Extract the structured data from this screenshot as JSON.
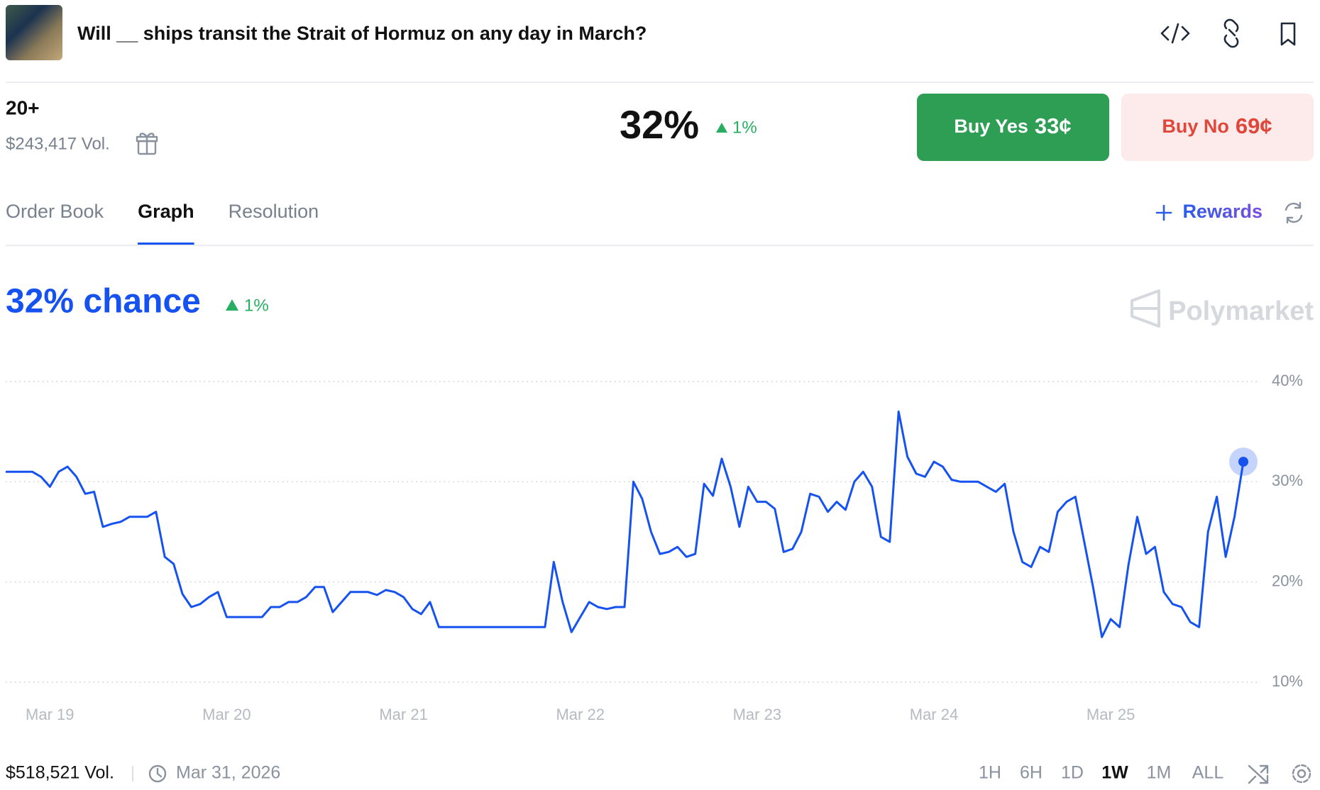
{
  "header": {
    "title": "Will __ ships transit the Strait of Hormuz on any day in March?"
  },
  "market": {
    "outcome": "20+",
    "volume": "$243,417 Vol.",
    "probability": "32%",
    "change": "1%",
    "buy_yes": {
      "label": "Buy Yes",
      "price": "33¢"
    },
    "buy_no": {
      "label": "Buy No",
      "price": "69¢"
    }
  },
  "tabs": {
    "items": [
      "Order Book",
      "Graph",
      "Resolution"
    ],
    "selected": 1,
    "rewards": "Rewards"
  },
  "chart_data": {
    "type": "line",
    "title": "32% chance",
    "change": "1%",
    "watermark": "Polymarket",
    "categories": [
      null,
      null,
      null,
      null,
      null,
      "Mar 19",
      null,
      null,
      null,
      null,
      null,
      null,
      null,
      null,
      null,
      null,
      null,
      null,
      null,
      null,
      null,
      null,
      null,
      null,
      null,
      "Mar 20",
      null,
      null,
      null,
      null,
      null,
      null,
      null,
      null,
      null,
      null,
      null,
      null,
      null,
      null,
      null,
      null,
      null,
      null,
      null,
      "Mar 21",
      null,
      null,
      null,
      null,
      null,
      null,
      null,
      null,
      null,
      null,
      null,
      null,
      null,
      null,
      null,
      null,
      null,
      null,
      null,
      "Mar 22",
      null,
      null,
      null,
      null,
      null,
      null,
      null,
      null,
      null,
      null,
      null,
      null,
      null,
      null,
      null,
      null,
      null,
      null,
      null,
      "Mar 23",
      null,
      null,
      null,
      null,
      null,
      null,
      null,
      null,
      null,
      null,
      null,
      null,
      null,
      null,
      null,
      null,
      null,
      null,
      null,
      "Mar 24",
      null,
      null,
      null,
      null,
      null,
      null,
      null,
      null,
      null,
      null,
      null,
      null,
      null,
      null,
      null,
      null,
      null,
      null,
      null,
      "Mar 25",
      null,
      null,
      null,
      null,
      null,
      null,
      null,
      null,
      null,
      null,
      null,
      null,
      null,
      null,
      null
    ],
    "values": [
      31,
      31,
      31,
      31,
      30.5,
      29.5,
      31,
      31.5,
      30.5,
      28.8,
      29,
      25.5,
      25.8,
      26,
      26.5,
      26.5,
      26.5,
      27,
      22.5,
      21.8,
      18.8,
      17.5,
      17.8,
      18.5,
      19,
      16.5,
      16.5,
      16.5,
      16.5,
      16.5,
      17.5,
      17.5,
      18,
      18,
      18.5,
      19.5,
      19.5,
      17,
      18,
      19,
      19,
      19,
      18.7,
      19.2,
      19,
      18.5,
      17.3,
      16.8,
      18,
      15.5,
      15.5,
      15.5,
      15.5,
      15.5,
      15.5,
      15.5,
      15.5,
      15.5,
      15.5,
      15.5,
      15.5,
      15.5,
      22,
      18,
      15,
      16.5,
      18,
      17.5,
      17.3,
      17.5,
      17.5,
      30,
      28.3,
      25,
      22.8,
      23,
      23.5,
      22.5,
      22.8,
      29.8,
      28.6,
      32.3,
      29.5,
      25.5,
      29.5,
      28,
      28,
      27.3,
      23,
      23.3,
      25,
      28.8,
      28.5,
      27,
      28,
      27.2,
      30,
      31,
      29.5,
      24.5,
      24,
      37,
      32.5,
      30.8,
      30.5,
      32,
      31.5,
      30.2,
      30,
      30,
      30,
      29.5,
      29,
      29.8,
      25,
      22,
      21.5,
      23.5,
      23,
      27,
      28,
      28.5,
      24,
      19.5,
      14.5,
      16.3,
      15.5,
      21.7,
      26.5,
      22.8,
      23.5,
      19,
      17.8,
      17.5,
      16,
      15.5,
      25,
      28.5,
      22.5,
      26.5,
      32
    ],
    "color": "#1652f0",
    "ylim": [
      10,
      40
    ],
    "yticks": [
      {
        "value": 10,
        "label": "10%"
      },
      {
        "value": 20,
        "label": "20%"
      },
      {
        "value": 30,
        "label": "30%"
      },
      {
        "value": 40,
        "label": "40%"
      }
    ],
    "grid": true
  },
  "footer": {
    "volume": "$518,521 Vol.",
    "end_date": "Mar 31, 2026",
    "ranges": [
      "1H",
      "6H",
      "1D",
      "1W",
      "1M",
      "ALL"
    ],
    "selected_range": 3
  }
}
